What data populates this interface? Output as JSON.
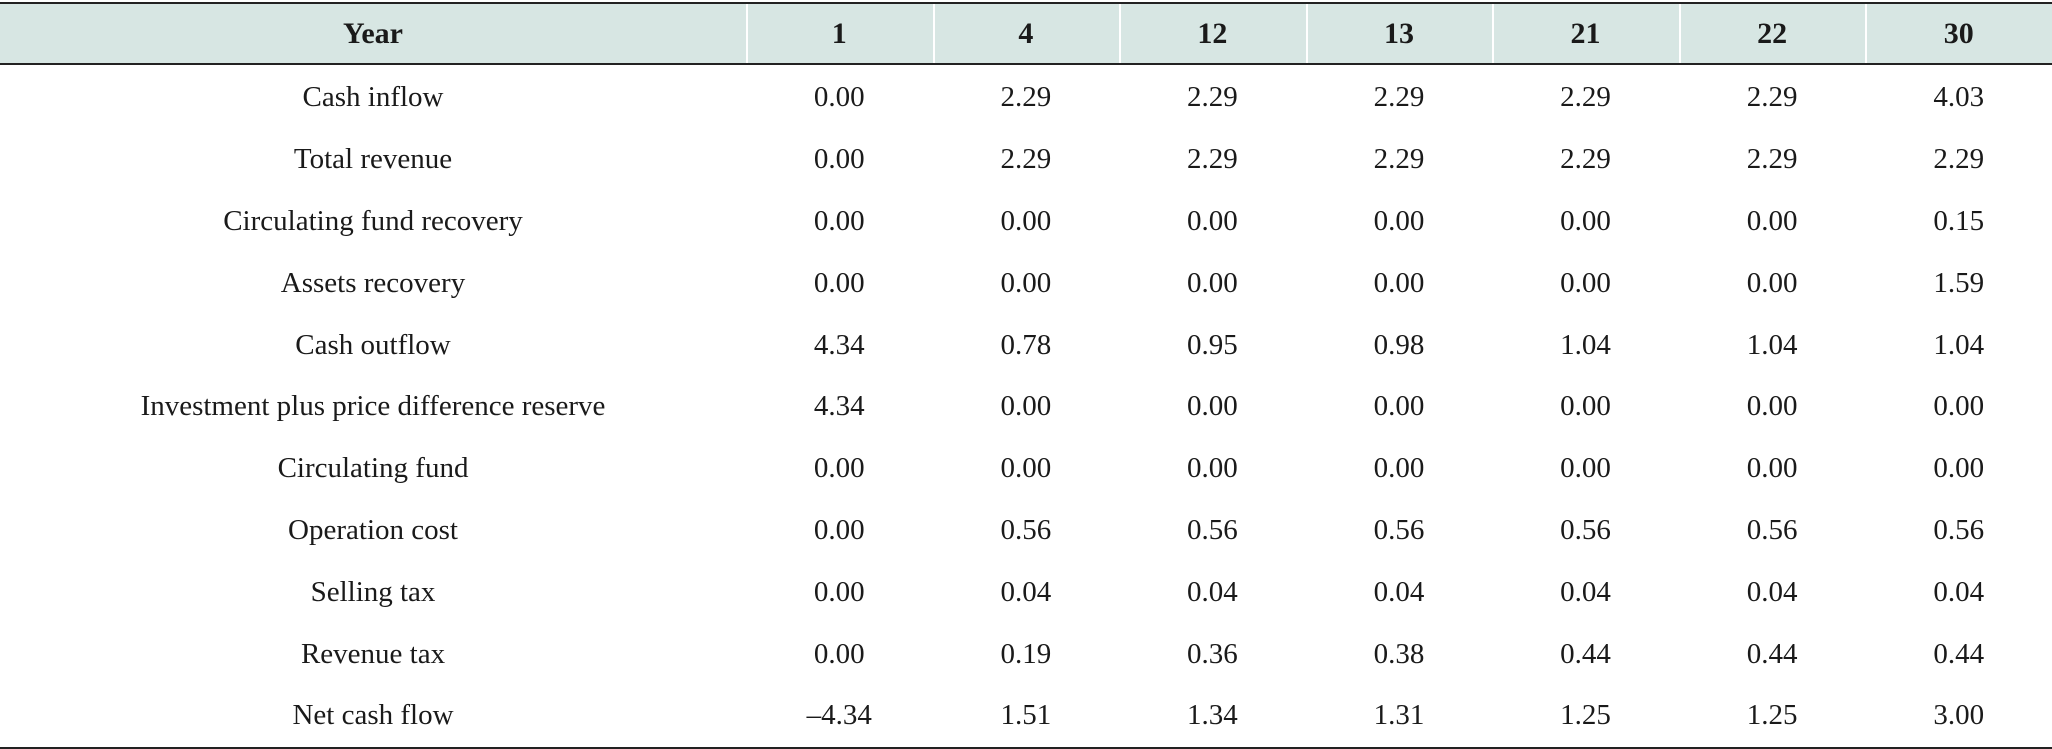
{
  "table": {
    "columns": [
      "Year",
      "1",
      "4",
      "12",
      "13",
      "21",
      "22",
      "30"
    ],
    "rows": [
      {
        "label": "Cash inflow",
        "values": [
          "0.00",
          "2.29",
          "2.29",
          "2.29",
          "2.29",
          "2.29",
          "4.03"
        ]
      },
      {
        "label": "Total revenue",
        "values": [
          "0.00",
          "2.29",
          "2.29",
          "2.29",
          "2.29",
          "2.29",
          "2.29"
        ]
      },
      {
        "label": "Circulating fund recovery",
        "values": [
          "0.00",
          "0.00",
          "0.00",
          "0.00",
          "0.00",
          "0.00",
          "0.15"
        ]
      },
      {
        "label": "Assets recovery",
        "values": [
          "0.00",
          "0.00",
          "0.00",
          "0.00",
          "0.00",
          "0.00",
          "1.59"
        ]
      },
      {
        "label": "Cash outflow",
        "values": [
          "4.34",
          "0.78",
          "0.95",
          "0.98",
          "1.04",
          "1.04",
          "1.04"
        ]
      },
      {
        "label": "Investment plus price difference reserve",
        "values": [
          "4.34",
          "0.00",
          "0.00",
          "0.00",
          "0.00",
          "0.00",
          "0.00"
        ]
      },
      {
        "label": "Circulating fund",
        "values": [
          "0.00",
          "0.00",
          "0.00",
          "0.00",
          "0.00",
          "0.00",
          "0.00"
        ]
      },
      {
        "label": "Operation cost",
        "values": [
          "0.00",
          "0.56",
          "0.56",
          "0.56",
          "0.56",
          "0.56",
          "0.56"
        ]
      },
      {
        "label": "Selling tax",
        "values": [
          "0.00",
          "0.04",
          "0.04",
          "0.04",
          "0.04",
          "0.04",
          "0.04"
        ]
      },
      {
        "label": "Revenue tax",
        "values": [
          "0.00",
          "0.19",
          "0.36",
          "0.38",
          "0.44",
          "0.44",
          "0.44"
        ]
      },
      {
        "label": "Net cash flow",
        "values": [
          "–4.34",
          "1.51",
          "1.34",
          "1.31",
          "1.25",
          "1.25",
          "3.00"
        ]
      }
    ]
  },
  "colors": {
    "header_background": "#d7e6e3",
    "rule": "#222222"
  }
}
